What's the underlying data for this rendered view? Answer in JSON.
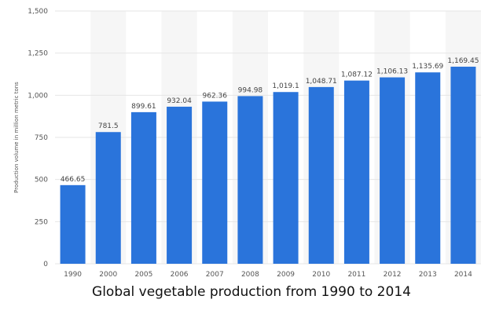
{
  "caption": "Global vegetable production from 1990 to 2014",
  "chart_data": {
    "type": "bar",
    "categories": [
      "1990",
      "2000",
      "2005",
      "2006",
      "2007",
      "2008",
      "2009",
      "2010",
      "2011",
      "2012",
      "2013",
      "2014"
    ],
    "values": [
      466.65,
      781.5,
      899.61,
      932.04,
      962.36,
      994.98,
      1019.1,
      1048.71,
      1087.12,
      1106.13,
      1135.69,
      1169.45
    ],
    "value_labels": [
      "466.65",
      "781.5",
      "899.61",
      "932.04",
      "962.36",
      "994.98",
      "1,019.1",
      "1,048.71",
      "1,087.12",
      "1,106.13",
      "1,135.69",
      "1,169.45"
    ],
    "title": "",
    "xlabel": "",
    "ylabel": "Production volume in million metric tons",
    "ylim": [
      0,
      1500
    ],
    "yticks": [
      0,
      250,
      500,
      750,
      1000,
      1250,
      1500
    ],
    "ytick_labels": [
      "0",
      "250",
      "500",
      "750",
      "1,000",
      "1,250",
      "1,500"
    ],
    "grid": true,
    "colors": {
      "bar": "#2a74db",
      "band": "#f6f6f6",
      "grid": "#e6e6e6",
      "tick_text": "#555555",
      "value_text": "#444444"
    }
  }
}
